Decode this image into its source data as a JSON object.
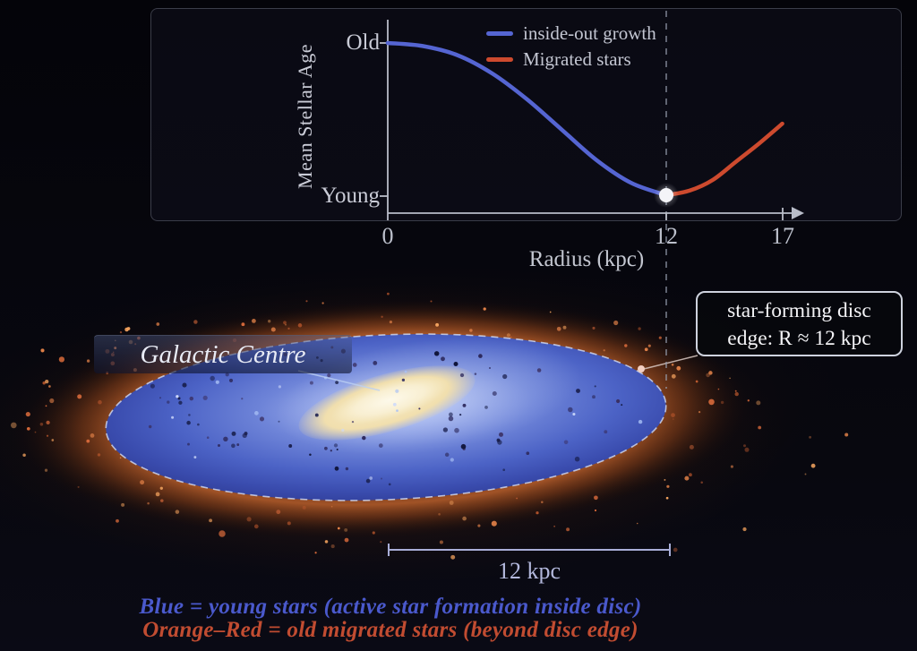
{
  "chart": {
    "ylabel": "Mean Stellar Age",
    "y_tick_top": "Old",
    "y_tick_bottom": "Young",
    "xlabel": "Radius (kpc)",
    "x_ticks": [
      "0",
      "12",
      "17"
    ],
    "legend": [
      {
        "label": "inside-out growth",
        "color": "#5565d2"
      },
      {
        "label": "Migrated stars",
        "color": "#cd4a2e"
      }
    ]
  },
  "chart_data": {
    "type": "line",
    "title": "",
    "xlabel": "Radius (kpc)",
    "ylabel": "Mean Stellar Age",
    "x_range": [
      0,
      17
    ],
    "x_ticks": [
      0,
      12,
      17
    ],
    "y_axis_qualitative": [
      "Young",
      "Old"
    ],
    "grid": false,
    "legend_position": "top-right",
    "series": [
      {
        "name": "inside-out growth",
        "color": "#5565d2",
        "x": [
          0,
          1.5,
          3,
          4.5,
          6,
          7.5,
          9,
          10.5,
          12
        ],
        "age_fraction_old": [
          1.0,
          0.98,
          0.92,
          0.8,
          0.63,
          0.43,
          0.23,
          0.08,
          0.0
        ]
      },
      {
        "name": "Migrated stars",
        "color": "#cd4a2e",
        "x": [
          12,
          13,
          14,
          15,
          16,
          17
        ],
        "age_fraction_old": [
          0.0,
          0.03,
          0.1,
          0.22,
          0.34,
          0.47
        ]
      }
    ],
    "marker": {
      "x": 12,
      "age_fraction_old": 0,
      "label": "star-forming disc edge"
    },
    "annotations": [
      "dashed vertical line at R = 12 kpc"
    ]
  },
  "galaxy": {
    "centre_label": "Galactic Centre",
    "callout_line1": "star-forming disc",
    "callout_line2": "edge: R ≈ 12 kpc",
    "scale_label": "12 kpc",
    "palette": {
      "disc_blue": "#4c63c6",
      "bar_cream": "#f3e3b4",
      "halo_orange": "#b05a28",
      "dashed_line": "#9aa2b2",
      "axis": "#b9bdc9",
      "scale_bar": "#a9aed8",
      "halo_specks": [
        "#f5a45f",
        "#e8854a",
        "#d4683a",
        "#c05a2e"
      ],
      "disc_specks": [
        "#10153a",
        "#1c2150",
        "#2e2a5e",
        "#3a2f62"
      ],
      "bright_specks": [
        "#a8c0f5",
        "#cdd9fa"
      ]
    }
  },
  "footer": {
    "line1": {
      "text": "Blue = young stars (active star formation inside disc)",
      "color": "#4a59cc"
    },
    "line2": {
      "text": "Orange–Red = old migrated stars (beyond disc edge)",
      "color": "#c14c31"
    }
  }
}
